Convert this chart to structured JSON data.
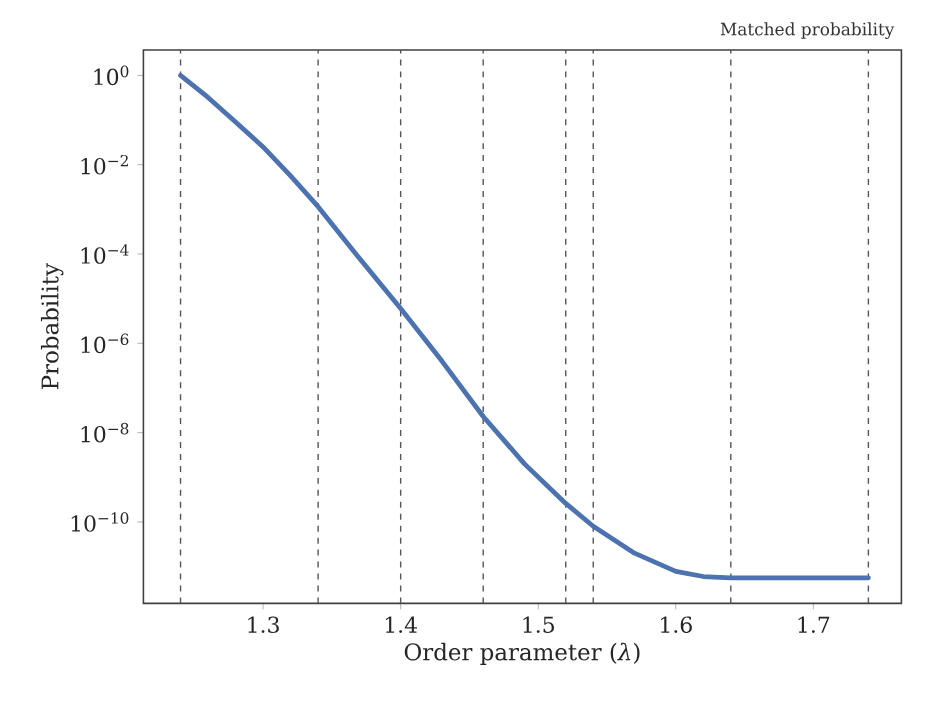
{
  "chart_data": {
    "type": "line",
    "title": "Matched probability",
    "xlabel": "Order parameter (*λ*)",
    "ylabel": "Probability",
    "x": [
      1.24,
      1.26,
      1.28,
      1.3,
      1.32,
      1.34,
      1.37,
      1.4,
      1.43,
      1.46,
      1.49,
      1.52,
      1.54,
      1.57,
      1.6,
      1.62,
      1.64,
      1.74
    ],
    "series": [
      {
        "color": "#4c72b0",
        "values": [
          1.0,
          0.32,
          0.09,
          0.025,
          0.0056,
          0.00115,
          8e-05,
          6e-06,
          4e-07,
          2.3e-08,
          2e-09,
          2.6e-10,
          8e-11,
          2e-11,
          7.8e-12,
          6e-12,
          5.6e-12,
          5.6e-12
        ]
      }
    ],
    "log": "y",
    "xlim": [
      1.213,
      1.764
    ],
    "ylim": [
      1.5e-12,
      3.7
    ],
    "xticks": [
      1.3,
      1.4,
      1.5,
      1.6,
      1.7
    ],
    "yticks": [
      {
        "value": 1,
        "label": "10$^{0}$"
      },
      {
        "value": 0.01,
        "label": "10$^{−2}$"
      },
      {
        "value": 0.0001,
        "label": "10$^{−4}$"
      },
      {
        "value": 1e-06,
        "label": "10$^{−6}$"
      },
      {
        "value": 1e-08,
        "label": "10$^{−8}$"
      },
      {
        "value": 1e-10,
        "label": "10$^{−10}$"
      }
    ],
    "ref_lines": [
      {
        "axis": "x",
        "value": 1.24,
        "color": "#555555",
        "line_style": "dashed"
      },
      {
        "axis": "x",
        "value": 1.34,
        "color": "#555555",
        "line_style": "dashed"
      },
      {
        "axis": "x",
        "value": 1.4,
        "color": "#555555",
        "line_style": "dashed"
      },
      {
        "axis": "x",
        "value": 1.46,
        "color": "#555555",
        "line_style": "dashed"
      },
      {
        "axis": "x",
        "value": 1.52,
        "color": "#555555",
        "line_style": "dashed"
      },
      {
        "axis": "x",
        "value": 1.54,
        "color": "#555555",
        "line_style": "dashed"
      },
      {
        "axis": "x",
        "value": 1.64,
        "color": "#555555",
        "line_style": "dashed"
      },
      {
        "axis": "x",
        "value": 1.74,
        "color": "#555555",
        "line_style": "dashed"
      }
    ],
    "grid": false,
    "marker": "none",
    "line_style": "solid"
  }
}
